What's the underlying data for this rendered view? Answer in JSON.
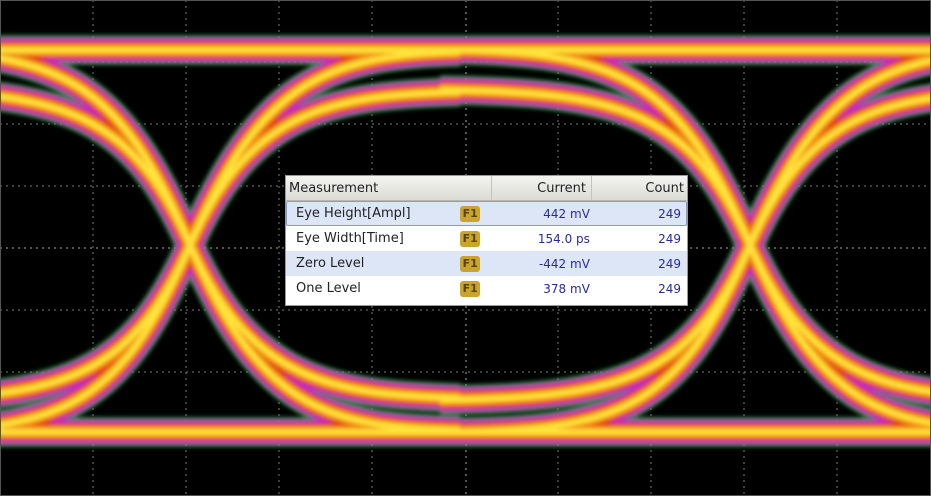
{
  "scope": {
    "display": "eye-diagram",
    "trace_colors": [
      "#1c9a3a",
      "#c02ccc",
      "#e2281e",
      "#f08a10",
      "#ffe23a"
    ],
    "grid_color": "#7a7a7a"
  },
  "measurements": {
    "columns": {
      "measurement": "Measurement",
      "current": "Current",
      "count": "Count"
    },
    "rows": [
      {
        "name": "Eye Height[Ampl]",
        "source": "F1",
        "current": "442 mV",
        "count": "249"
      },
      {
        "name": "Eye Width[Time]",
        "source": "F1",
        "current": "154.0 ps",
        "count": "249"
      },
      {
        "name": "Zero Level",
        "source": "F1",
        "current": "-442 mV",
        "count": "249"
      },
      {
        "name": "One Level",
        "source": "F1",
        "current": "378 mV",
        "count": "249"
      }
    ]
  }
}
